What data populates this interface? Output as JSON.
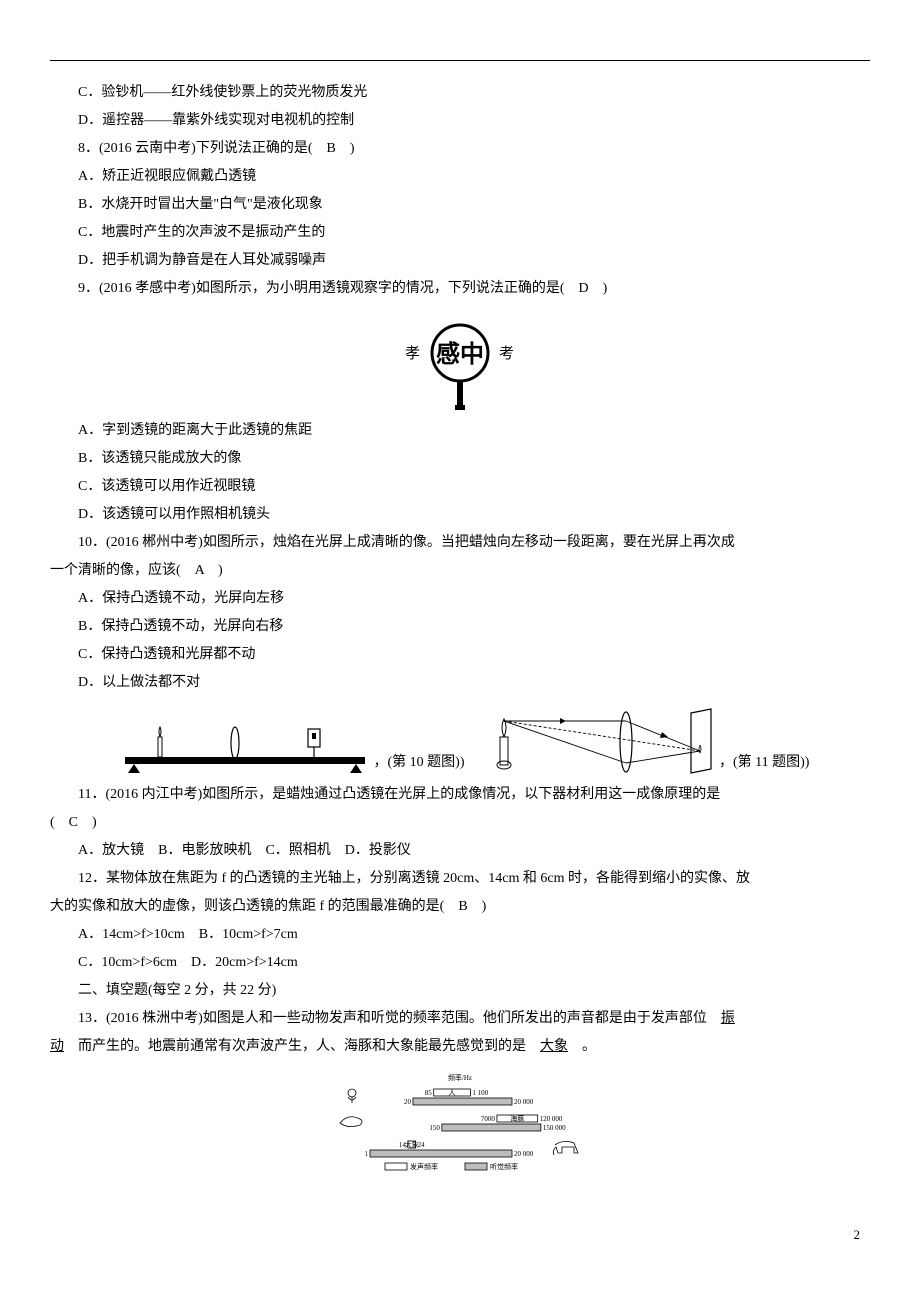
{
  "q7": {
    "optC": "C．验钞机——红外线使钞票上的荧光物质发光",
    "optD": "D．遥控器——靠紫外线实现对电视机的控制"
  },
  "q8": {
    "stem": "8．(2016 云南中考)下列说法正确的是(　B　)",
    "optA": "A．矫正近视眼应佩戴凸透镜",
    "optB": "B．水烧开时冒出大量\"白气\"是液化现象",
    "optC": "C．地震时产生的次声波不是振动产生的",
    "optD": "D．把手机调为静音是在人耳处减弱噪声"
  },
  "q9": {
    "stem": "9．(2016 孝感中考)如图所示，为小明用透镜观察字的情况，下列说法正确的是(　D　)",
    "optA": "A．字到透镜的距离大于此透镜的焦距",
    "optB": "B．该透镜只能成放大的像",
    "optC": "C．该透镜可以用作近视眼镜",
    "optD": "D．该透镜可以用作照相机镜头",
    "lens_left": "孝",
    "lens_center": "感中",
    "lens_right": "考",
    "lens_colors": {
      "circle_stroke": "#000",
      "handle": "#000",
      "text": "#000",
      "bg": "#fff"
    }
  },
  "q10": {
    "stem_a": "10．(2016 郴州中考)如图所示，烛焰在光屏上成清晰的像。当把蜡烛向左移动一段距离，要在光屏上再次成",
    "stem_b": "一个清晰的像，应该(　A　)",
    "optA": "A．保持凸透镜不动，光屏向左移",
    "optB": "B．保持凸透镜不动，光屏向右移",
    "optC": "C．保持凸透镜和光屏都不动",
    "optD": "D．以上做法都不对",
    "caption": "，(第 10 题图))",
    "fig": {
      "bench_color": "#000",
      "object_color": "#000",
      "bg": "#fff"
    }
  },
  "q11": {
    "stem_a": "11．(2016 内江中考)如图所示，是蜡烛通过凸透镜在光屏上的成像情况，以下器材利用这一成像原理的是",
    "stem_b": "(　C　)",
    "opts": "A．放大镜　B．电影放映机　C．照相机　D．投影仪",
    "caption": "，(第 11 题图))",
    "fig": {
      "stroke": "#000",
      "bg": "#fff"
    }
  },
  "q12": {
    "stem_a": "12．某物体放在焦距为 f 的凸透镜的主光轴上，分别离透镜 20cm、14cm 和 6cm 时，各能得到缩小的实像、放",
    "stem_b": "大的实像和放大的虚像，则该凸透镜的焦距 f 的范围最准确的是(　B　)",
    "optsAB": "A．14cm>f>10cm　B．10cm>f>7cm",
    "optsCD": "C．10cm>f>6cm　D．20cm>f>14cm"
  },
  "section2": "二、填空题(每空 2 分，共 22 分)",
  "q13": {
    "stem_a": "13．(2016 株洲中考)如图是人和一些动物发声和听觉的频率范围。他们所发出的声音都是由于发声部位　",
    "blank1": "振",
    "blank1b": "动",
    "stem_b": "　而产生的。地震前通常有次声波产生，人、海豚和大象能最先感觉到的是　",
    "blank2": "大象",
    "stem_c": "　。",
    "chart": {
      "title": "频率/Hz",
      "rows": [
        {
          "label": "人",
          "voice_lo": 85,
          "voice_hi": 1100,
          "hear_lo": 20,
          "hear_hi": 20000
        },
        {
          "label": "海豚",
          "voice_lo": 7000,
          "voice_hi": 120000,
          "hear_lo": 150,
          "hear_hi": 150000
        },
        {
          "label": "大象",
          "voice_lo": 14,
          "voice_hi": 24,
          "hear_lo": 1,
          "hear_hi": 20000
        }
      ],
      "legend": {
        "voice": "发声频率",
        "hear": "听觉频率"
      },
      "colors": {
        "voice_fill": "#fff",
        "hear_fill": "#bdbdbd",
        "stroke": "#000",
        "text": "#000",
        "bg": "#fff"
      },
      "font_size": 7
    }
  },
  "page_number": "2"
}
